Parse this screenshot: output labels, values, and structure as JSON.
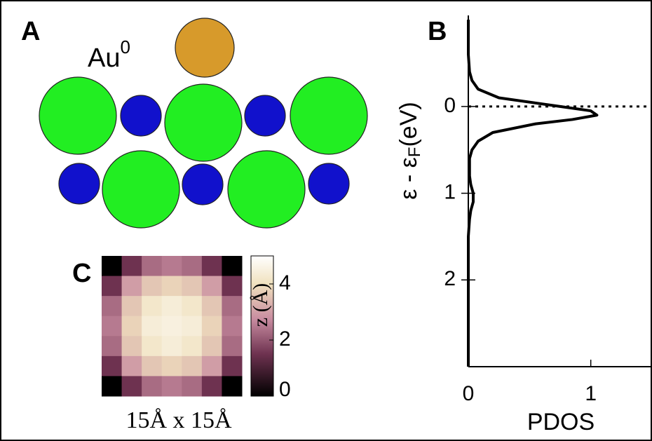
{
  "panel_a": {
    "label": "A",
    "atom_label": "Au",
    "atom_charge": "0"
  },
  "chart_data": [
    {
      "type": "line",
      "panel_label": "B",
      "orientation": "horizontal",
      "xlabel": "PDOS",
      "ylabel": [
        "ε - ε",
        "F",
        "(eV)"
      ],
      "y": [
        -1.0,
        -0.6,
        -0.4,
        -0.3,
        -0.2,
        -0.1,
        0,
        0.05,
        0.1,
        0.15,
        0.2,
        0.3,
        0.4,
        0.5,
        0.6,
        0.8,
        0.9,
        1.0,
        1.1,
        1.2,
        1.3,
        1.5,
        2,
        3
      ],
      "series": [
        {
          "name": "PDOS",
          "color": "#000000",
          "values": [
            0,
            0,
            0.01,
            0.03,
            0.08,
            0.25,
            0.75,
            1.0,
            1.05,
            0.85,
            0.55,
            0.2,
            0.08,
            0.03,
            0.01,
            0.01,
            0.02,
            0.04,
            0.04,
            0.02,
            0.01,
            0,
            0,
            0
          ]
        }
      ],
      "xlim": [
        0,
        1.5
      ],
      "xticks": [
        0,
        1
      ],
      "ylim": [
        -1.05,
        3
      ],
      "yticks": [
        0,
        1,
        2
      ],
      "y_inverted": true,
      "reference_line": 0
    },
    {
      "type": "heatmap",
      "panel_label": "C",
      "xlabel": "15Å x 15Å",
      "colorbar_label": "z (Å)",
      "zlim": [
        0,
        5
      ],
      "zticks": [
        0,
        2,
        4
      ],
      "values": [
        [
          0,
          1.5,
          2.3,
          2.5,
          2.3,
          1.5,
          0
        ],
        [
          1.5,
          3.0,
          3.6,
          3.8,
          3.6,
          3.0,
          1.5
        ],
        [
          2.3,
          3.6,
          4.2,
          4.4,
          4.2,
          3.6,
          2.3
        ],
        [
          2.5,
          3.8,
          4.4,
          4.5,
          4.4,
          3.8,
          2.5
        ],
        [
          2.3,
          3.6,
          4.2,
          4.4,
          4.2,
          3.6,
          2.3
        ],
        [
          1.5,
          3.0,
          3.6,
          3.8,
          3.6,
          3.0,
          1.5
        ],
        [
          0,
          1.5,
          2.3,
          2.5,
          2.3,
          1.5,
          0
        ]
      ]
    }
  ]
}
